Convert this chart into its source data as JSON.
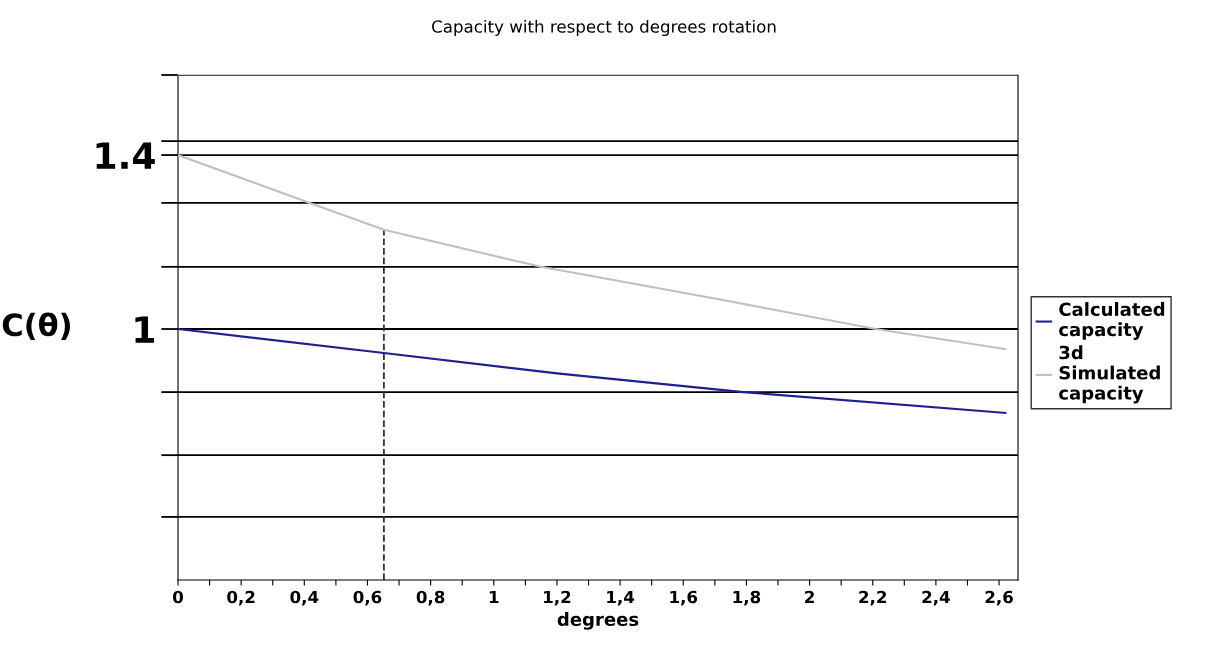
{
  "chart_data": {
    "type": "line",
    "title": "Capacity with respect to degrees rotation",
    "xlabel": "degrees",
    "ylabel": "C(θ)",
    "series": [
      {
        "name": "Calculated capacity",
        "color": "#1f1f8f",
        "x": [
          0,
          0.652,
          1.2,
          1.79,
          2.62
        ],
        "values": [
          1,
          0.945,
          0.898,
          0.855,
          0.807
        ]
      },
      {
        "name": "3d Simulated capacity",
        "color": "#c0c0c0",
        "x": [
          0,
          0.424,
          0.652,
          1.149,
          1.7,
          2.21,
          2.62
        ],
        "values": [
          1.4,
          1.288,
          1.228,
          1.143,
          1.07,
          1,
          0.954
        ]
      }
    ],
    "xlim": [
      0,
      2.66
    ],
    "ylim": [
      0.423,
      1.584
    ],
    "xticks": [
      {
        "value": 0,
        "label": "0"
      },
      {
        "value": 0.1,
        "label": null
      },
      {
        "value": 0.2,
        "label": "0,2"
      },
      {
        "value": 0.3,
        "label": null
      },
      {
        "value": 0.4,
        "label": "0,4"
      },
      {
        "value": 0.5,
        "label": null
      },
      {
        "value": 0.6,
        "label": "0,6"
      },
      {
        "value": 0.7,
        "label": null
      },
      {
        "value": 0.8,
        "label": "0,8"
      },
      {
        "value": 0.9,
        "label": null
      },
      {
        "value": 1,
        "label": "1"
      },
      {
        "value": 1.1,
        "label": null
      },
      {
        "value": 1.2,
        "label": "1,2"
      },
      {
        "value": 1.3,
        "label": null
      },
      {
        "value": 1.4,
        "label": "1,4"
      },
      {
        "value": 1.5,
        "label": null
      },
      {
        "value": 1.6,
        "label": "1,6"
      },
      {
        "value": 1.7,
        "label": null
      },
      {
        "value": 1.8,
        "label": "1,8"
      },
      {
        "value": 1.9,
        "label": null
      },
      {
        "value": 2,
        "label": "2"
      },
      {
        "value": 2.1,
        "label": null
      },
      {
        "value": 2.2,
        "label": "2,2"
      },
      {
        "value": 2.3,
        "label": null
      },
      {
        "value": 2.4,
        "label": "2,4"
      },
      {
        "value": 2.5,
        "label": null
      },
      {
        "value": 2.6,
        "label": "2,6"
      }
    ],
    "yticks": [
      {
        "value": 0.568,
        "label": null
      },
      {
        "value": 0.71,
        "label": null
      },
      {
        "value": 0.855,
        "label": null
      },
      1,
      {
        "value": 1.143,
        "label": null
      },
      {
        "value": 1.29,
        "label": null
      },
      1.4,
      {
        "value": 1.432,
        "label": null
      },
      {
        "value": 1.584,
        "label": null
      }
    ],
    "ref_lines": [
      {
        "axis": "x",
        "value": 0.652,
        "line_style": "dashed",
        "color": "#333333"
      }
    ],
    "grid": "y",
    "legend": "right",
    "marker": "none",
    "line_style": "solid"
  }
}
